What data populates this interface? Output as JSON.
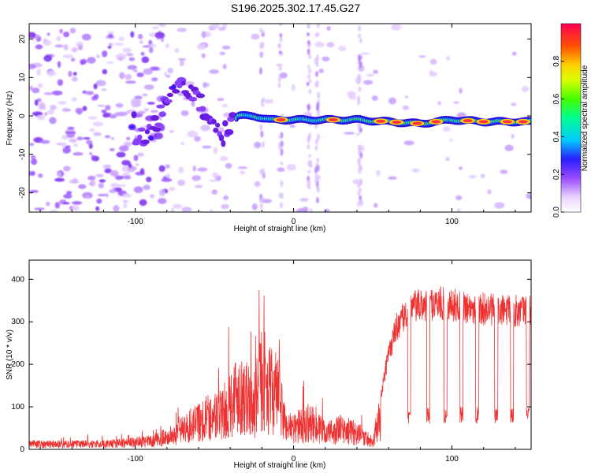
{
  "title": "S196.2025.302.17.45.G27",
  "chart_data": [
    {
      "type": "heatmap",
      "xlabel": "Height of straight line (km)",
      "ylabel": "Frequency (Hz)",
      "xlim": [
        -167,
        150
      ],
      "ylim": [
        -25,
        24
      ],
      "xticks": [
        -100,
        0,
        100
      ],
      "yticks": [
        -20,
        -10,
        0,
        10,
        20
      ],
      "colorbar": {
        "label": "Normalized spectral amplitude",
        "range": [
          0,
          1
        ],
        "ticks": [
          0.0,
          0.2,
          0.4,
          0.6,
          0.8
        ]
      },
      "ridge": {
        "description_points_km_hz": [
          [
            -100,
            -7
          ],
          [
            -90,
            -4
          ],
          [
            -85,
            0
          ],
          [
            -80,
            5
          ],
          [
            -72,
            7
          ],
          [
            -62,
            5
          ],
          [
            -52,
            -2
          ],
          [
            -45,
            -5
          ],
          [
            -35,
            0
          ],
          [
            -25,
            0
          ],
          [
            -15,
            -1
          ],
          [
            0,
            -1
          ],
          [
            20,
            -1
          ],
          [
            40,
            -1
          ],
          [
            60,
            -1.5
          ],
          [
            80,
            -2
          ],
          [
            100,
            -1
          ],
          [
            120,
            -1.5
          ],
          [
            150,
            -1.5
          ]
        ]
      }
    },
    {
      "type": "line",
      "xlabel": "Height of straight line (km)",
      "ylabel": "SNR (10 * v/v)",
      "xlim": [
        -167,
        150
      ],
      "ylim": [
        0,
        445
      ],
      "xticks": [
        -100,
        0,
        100
      ],
      "yticks": [
        0,
        100,
        200,
        300,
        400
      ],
      "series": [
        {
          "name": "SNR",
          "color": "#ee3333",
          "envelope_km_snr": [
            [
              -167,
              20
            ],
            [
              -120,
              20
            ],
            [
              -90,
              30
            ],
            [
              -75,
              55
            ],
            [
              -65,
              90
            ],
            [
              -55,
              120
            ],
            [
              -45,
              130
            ],
            [
              -35,
              220
            ],
            [
              -25,
              160
            ],
            [
              -20,
              270
            ],
            [
              -15,
              220
            ],
            [
              -10,
              210
            ],
            [
              -5,
              90
            ],
            [
              0,
              80
            ],
            [
              10,
              100
            ],
            [
              20,
              60
            ],
            [
              30,
              75
            ],
            [
              40,
              60
            ],
            [
              50,
              30
            ],
            [
              55,
              130
            ],
            [
              60,
              240
            ],
            [
              65,
              310
            ],
            [
              75,
              360
            ],
            [
              90,
              370
            ],
            [
              110,
              360
            ],
            [
              130,
              350
            ],
            [
              150,
              350
            ]
          ]
        }
      ]
    }
  ]
}
